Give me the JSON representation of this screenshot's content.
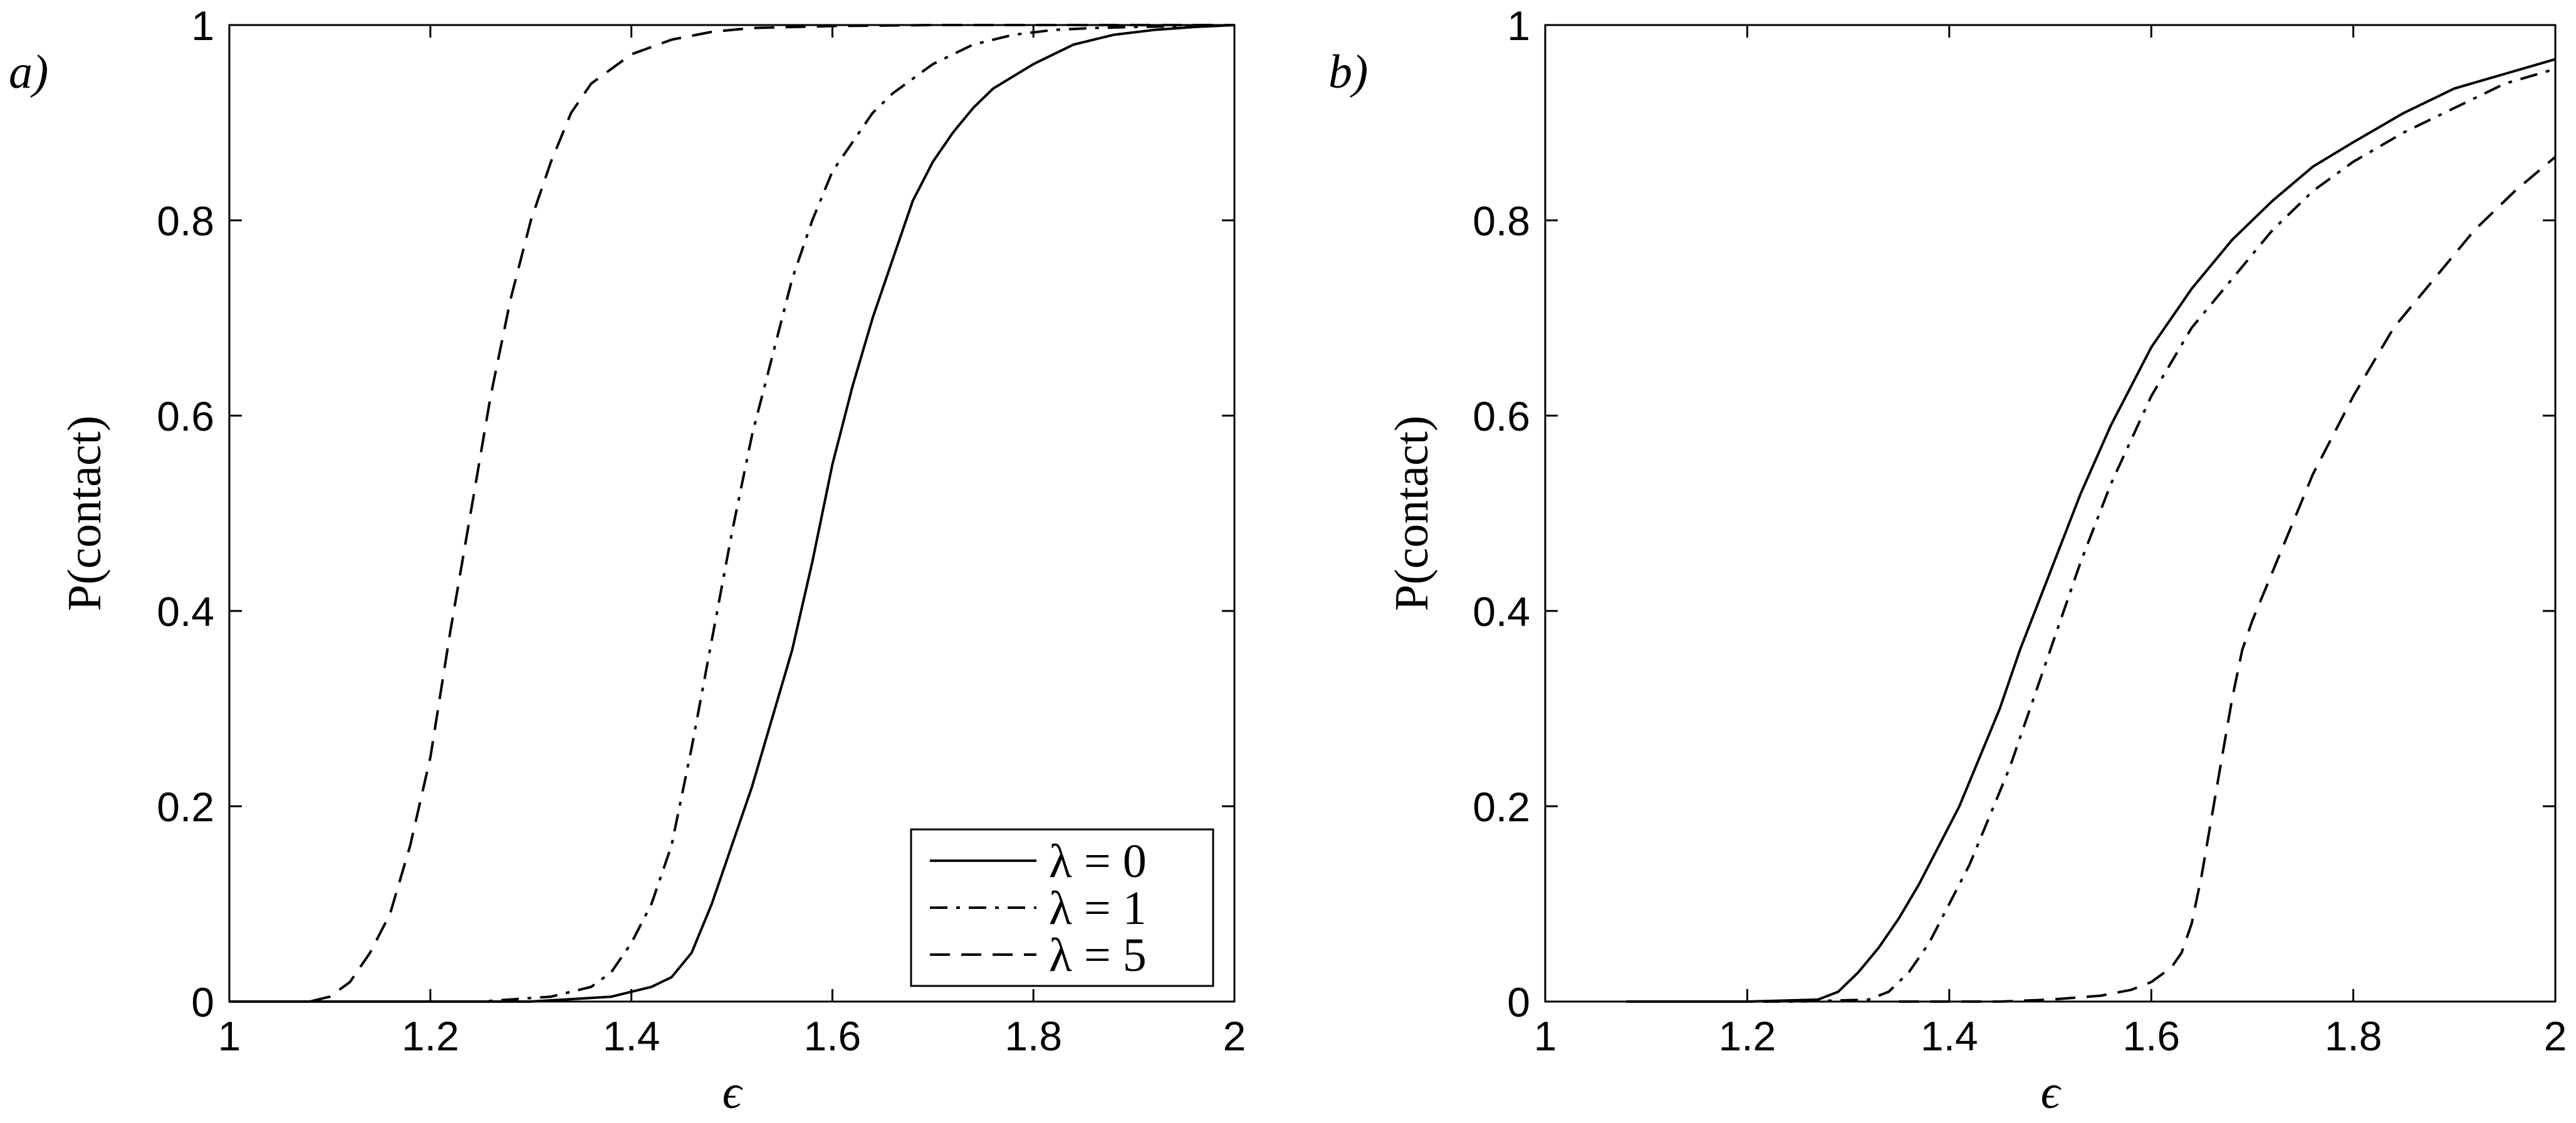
{
  "chart_data": [
    {
      "type": "line",
      "panel_label": "a)",
      "xlabel": "ϵ",
      "ylabel": "P(contact)",
      "xlim": [
        1,
        2
      ],
      "ylim": [
        0,
        1
      ],
      "xticks": [
        "1",
        "1.2",
        "1.4",
        "1.6",
        "1.8",
        "2"
      ],
      "yticks": [
        "0",
        "0.2",
        "0.4",
        "0.6",
        "0.8",
        "1"
      ],
      "grid": false,
      "legend": {
        "placement": "bottom-right",
        "entries": [
          "λ = 0",
          "λ = 1",
          "λ = 5"
        ]
      },
      "series": [
        {
          "name": "λ = 0",
          "style": "solid",
          "x": [
            1.0,
            1.3,
            1.38,
            1.42,
            1.44,
            1.46,
            1.48,
            1.5,
            1.52,
            1.54,
            1.56,
            1.58,
            1.6,
            1.62,
            1.64,
            1.66,
            1.68,
            1.7,
            1.72,
            1.74,
            1.76,
            1.8,
            1.84,
            1.88,
            1.92,
            1.96,
            2.0
          ],
          "y": [
            0.0,
            0.0,
            0.005,
            0.015,
            0.025,
            0.05,
            0.1,
            0.16,
            0.22,
            0.29,
            0.36,
            0.45,
            0.55,
            0.63,
            0.7,
            0.76,
            0.82,
            0.86,
            0.89,
            0.915,
            0.935,
            0.96,
            0.98,
            0.99,
            0.995,
            0.998,
            1.0
          ]
        },
        {
          "name": "λ = 1",
          "style": "dash-dot",
          "x": [
            1.0,
            1.25,
            1.32,
            1.36,
            1.38,
            1.4,
            1.42,
            1.44,
            1.46,
            1.48,
            1.5,
            1.52,
            1.54,
            1.56,
            1.58,
            1.6,
            1.62,
            1.64,
            1.66,
            1.7,
            1.74,
            1.78,
            1.82,
            1.86,
            1.9,
            1.95,
            2.0
          ],
          "y": [
            0.0,
            0.0,
            0.005,
            0.015,
            0.03,
            0.06,
            0.1,
            0.16,
            0.26,
            0.37,
            0.48,
            0.58,
            0.66,
            0.74,
            0.8,
            0.85,
            0.88,
            0.91,
            0.93,
            0.96,
            0.98,
            0.99,
            0.995,
            0.997,
            0.998,
            0.999,
            1.0
          ]
        },
        {
          "name": "λ = 5",
          "style": "dashed",
          "x": [
            1.05,
            1.08,
            1.1,
            1.12,
            1.14,
            1.16,
            1.18,
            1.2,
            1.22,
            1.24,
            1.26,
            1.28,
            1.3,
            1.32,
            1.34,
            1.36,
            1.4,
            1.44,
            1.48,
            1.52,
            1.6,
            1.7,
            1.8,
            1.9,
            2.0
          ],
          "y": [
            0.0,
            0.0,
            0.005,
            0.02,
            0.05,
            0.09,
            0.16,
            0.25,
            0.38,
            0.5,
            0.62,
            0.72,
            0.8,
            0.86,
            0.91,
            0.94,
            0.97,
            0.985,
            0.993,
            0.997,
            0.999,
            1.0,
            1.0,
            1.0,
            1.0
          ]
        }
      ]
    },
    {
      "type": "line",
      "panel_label": "b)",
      "xlabel": "ϵ",
      "ylabel": "P(contact)",
      "xlim": [
        1,
        2
      ],
      "ylim": [
        0,
        1
      ],
      "xticks": [
        "1",
        "1.2",
        "1.4",
        "1.6",
        "1.8",
        "2"
      ],
      "yticks": [
        "0",
        "0.2",
        "0.4",
        "0.6",
        "0.8",
        "1"
      ],
      "grid": false,
      "series": [
        {
          "name": "λ = 0",
          "style": "solid",
          "x": [
            1.08,
            1.2,
            1.27,
            1.29,
            1.31,
            1.33,
            1.35,
            1.37,
            1.39,
            1.41,
            1.43,
            1.45,
            1.47,
            1.5,
            1.53,
            1.56,
            1.6,
            1.64,
            1.68,
            1.72,
            1.76,
            1.8,
            1.85,
            1.9,
            1.95,
            2.0
          ],
          "y": [
            0.0,
            0.0,
            0.002,
            0.01,
            0.03,
            0.055,
            0.085,
            0.12,
            0.16,
            0.2,
            0.25,
            0.3,
            0.36,
            0.44,
            0.52,
            0.59,
            0.67,
            0.73,
            0.78,
            0.82,
            0.855,
            0.88,
            0.91,
            0.935,
            0.95,
            0.965
          ]
        },
        {
          "name": "λ = 1",
          "style": "dash-dot",
          "x": [
            1.1,
            1.25,
            1.32,
            1.34,
            1.36,
            1.38,
            1.4,
            1.42,
            1.44,
            1.46,
            1.48,
            1.5,
            1.53,
            1.56,
            1.6,
            1.64,
            1.68,
            1.72,
            1.76,
            1.8,
            1.85,
            1.9,
            1.95,
            2.0
          ],
          "y": [
            0.0,
            0.0,
            0.002,
            0.01,
            0.03,
            0.06,
            0.1,
            0.14,
            0.19,
            0.24,
            0.3,
            0.36,
            0.45,
            0.53,
            0.62,
            0.69,
            0.74,
            0.79,
            0.83,
            0.86,
            0.89,
            0.915,
            0.94,
            0.955
          ]
        },
        {
          "name": "λ = 5",
          "style": "dashed",
          "x": [
            1.35,
            1.45,
            1.5,
            1.55,
            1.58,
            1.6,
            1.62,
            1.63,
            1.64,
            1.65,
            1.66,
            1.67,
            1.68,
            1.69,
            1.7,
            1.72,
            1.74,
            1.76,
            1.78,
            1.8,
            1.84,
            1.88,
            1.92,
            1.96,
            2.0
          ],
          "y": [
            0.0,
            0.0,
            0.002,
            0.006,
            0.012,
            0.02,
            0.035,
            0.05,
            0.08,
            0.13,
            0.19,
            0.25,
            0.31,
            0.36,
            0.39,
            0.44,
            0.49,
            0.54,
            0.58,
            0.62,
            0.69,
            0.74,
            0.79,
            0.83,
            0.865
          ]
        }
      ]
    }
  ]
}
